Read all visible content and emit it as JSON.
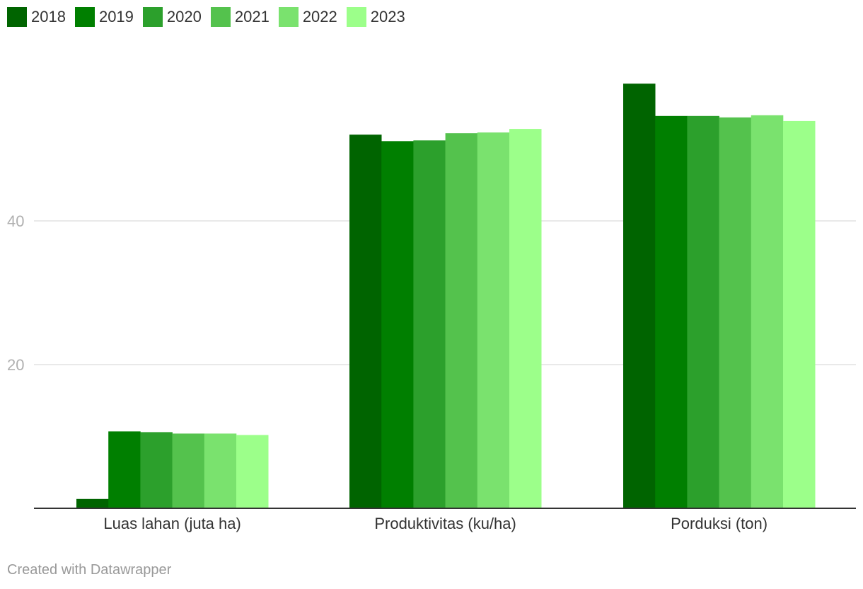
{
  "chart_data": {
    "type": "bar",
    "categories": [
      "Luas lahan (juta ha)",
      "Produktivitas (ku/ha)",
      "Porduksi (ton)"
    ],
    "series": [
      {
        "name": "2018",
        "color": "#006400",
        "values": [
          1.3,
          52.0,
          59.1
        ]
      },
      {
        "name": "2019",
        "color": "#007f00",
        "values": [
          10.7,
          51.1,
          54.6
        ]
      },
      {
        "name": "2020",
        "color": "#2ca02c",
        "values": [
          10.6,
          51.2,
          54.6
        ]
      },
      {
        "name": "2021",
        "color": "#54c24d",
        "values": [
          10.4,
          52.2,
          54.4
        ]
      },
      {
        "name": "2022",
        "color": "#7ae26e",
        "values": [
          10.4,
          52.3,
          54.7
        ]
      },
      {
        "name": "2023",
        "color": "#9cff8a",
        "values": [
          10.2,
          52.8,
          53.9
        ]
      }
    ],
    "y_ticks": [
      20,
      40
    ],
    "ylim": [
      0,
      60
    ],
    "grid": true,
    "legend": "top-left"
  },
  "credit": "Created with Datawrapper"
}
